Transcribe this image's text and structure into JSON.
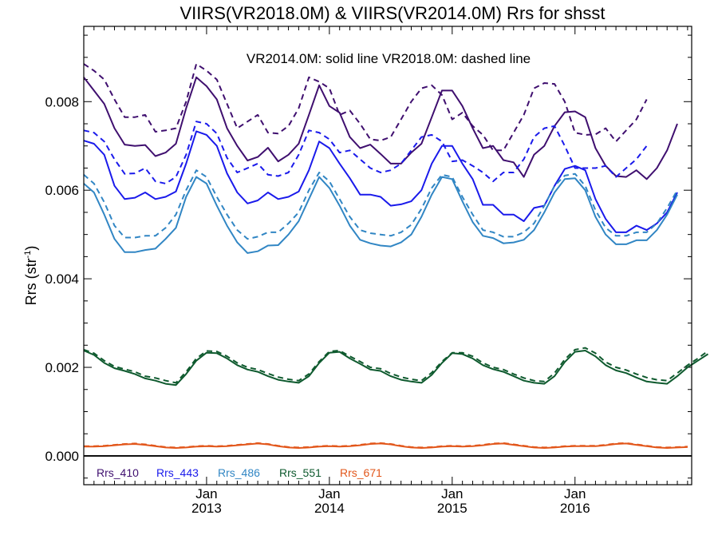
{
  "chart_data": {
    "type": "line",
    "title": "VIIRS(VR2018.0M) & VIIRS(VR2014.0M)  Rrs for shsst",
    "note": "VR2014.0M: solid line   VR2018.0M: dashed line",
    "ylabel": "Rrs (str",
    "ylabel_sup": "-1",
    "ylabel_close": ")",
    "xlim": [
      2012.0,
      2016.95
    ],
    "ylim": [
      -0.00065,
      0.0097
    ],
    "yticks": [
      0.0,
      0.002,
      0.004,
      0.006,
      0.008
    ],
    "ytick_labels": [
      "0.000",
      "0.002",
      "0.004",
      "0.006",
      "0.008"
    ],
    "xticks": [
      {
        "x": 2013.0,
        "month": "Jan",
        "year": "2013"
      },
      {
        "x": 2014.0,
        "month": "Jan",
        "year": "2014"
      },
      {
        "x": 2015.0,
        "month": "Jan",
        "year": "2015"
      },
      {
        "x": 2016.0,
        "month": "Jan",
        "year": "2016"
      }
    ],
    "x_first": 2012.0,
    "x_step": 0.0833333,
    "legend_position": "bottom-left",
    "series": [
      {
        "name": "Rrs_410",
        "color": "#3f0f6f",
        "style": "solid",
        "values": [
          0.00855,
          0.00825,
          0.00795,
          0.0074,
          0.00703,
          0.007,
          0.00702,
          0.00677,
          0.00685,
          0.00705,
          0.00785,
          0.00855,
          0.00835,
          0.00805,
          0.0074,
          0.007,
          0.00667,
          0.00675,
          0.00696,
          0.00665,
          0.0068,
          0.00705,
          0.0077,
          0.00837,
          0.0079,
          0.00775,
          0.0072,
          0.00695,
          0.00703,
          0.00682,
          0.0066,
          0.0066,
          0.00685,
          0.00705,
          0.00765,
          0.00825,
          0.00825,
          0.0079,
          0.0074,
          0.00695,
          0.007,
          0.00668,
          0.00663,
          0.0063,
          0.0068,
          0.007,
          0.00745,
          0.00776,
          0.00778,
          0.00765,
          0.00695,
          0.00655,
          0.00632,
          0.0063,
          0.00645,
          0.00625,
          0.0065,
          0.0069,
          0.0075
        ]
      },
      {
        "name": "Rrs_410",
        "color": "#3f0f6f",
        "style": "dashed",
        "values": [
          0.00885,
          0.0087,
          0.0085,
          0.00805,
          0.00765,
          0.00765,
          0.0077,
          0.00732,
          0.00735,
          0.0074,
          0.008,
          0.00885,
          0.0087,
          0.0085,
          0.00795,
          0.0074,
          0.00755,
          0.0077,
          0.0073,
          0.00728,
          0.00745,
          0.00785,
          0.00855,
          0.00845,
          0.0083,
          0.0077,
          0.0078,
          0.0075,
          0.00715,
          0.00712,
          0.0072,
          0.0076,
          0.008,
          0.0083,
          0.00837,
          0.00815,
          0.0076,
          0.00775,
          0.00745,
          0.00725,
          0.0069,
          0.0069,
          0.0073,
          0.0077,
          0.0083,
          0.00842,
          0.0084,
          0.008,
          0.0073,
          0.00725,
          0.00726,
          0.0074,
          0.0071,
          0.00735,
          0.0076,
          0.00805
        ]
      },
      {
        "name": "Rrs_443",
        "color": "#1a1aeb",
        "style": "solid",
        "values": [
          0.00712,
          0.00705,
          0.0068,
          0.0061,
          0.0058,
          0.00583,
          0.00595,
          0.0058,
          0.00585,
          0.00597,
          0.0066,
          0.00733,
          0.00725,
          0.007,
          0.00638,
          0.00595,
          0.0057,
          0.00577,
          0.00595,
          0.0058,
          0.00585,
          0.00597,
          0.00645,
          0.0071,
          0.00695,
          0.0066,
          0.00627,
          0.0059,
          0.0059,
          0.00585,
          0.00565,
          0.00568,
          0.00575,
          0.006,
          0.0066,
          0.007,
          0.007,
          0.0066,
          0.00625,
          0.00567,
          0.00567,
          0.00545,
          0.00545,
          0.0053,
          0.0056,
          0.00565,
          0.0061,
          0.00648,
          0.00655,
          0.00645,
          0.0058,
          0.00535,
          0.00505,
          0.00505,
          0.0052,
          0.0051,
          0.00525,
          0.0055,
          0.00595
        ]
      },
      {
        "name": "Rrs_443",
        "color": "#1a1aeb",
        "style": "dashed",
        "values": [
          0.00735,
          0.0073,
          0.0071,
          0.0067,
          0.00637,
          0.00638,
          0.0065,
          0.0062,
          0.00615,
          0.0063,
          0.0068,
          0.00755,
          0.0075,
          0.00728,
          0.00673,
          0.0064,
          0.0065,
          0.0066,
          0.00635,
          0.00632,
          0.0064,
          0.0068,
          0.00735,
          0.0073,
          0.00715,
          0.00685,
          0.0069,
          0.0067,
          0.0065,
          0.0064,
          0.00645,
          0.0066,
          0.0069,
          0.0072,
          0.00725,
          0.0071,
          0.00665,
          0.00668,
          0.00655,
          0.0064,
          0.0062,
          0.0064,
          0.0064,
          0.0067,
          0.0072,
          0.0074,
          0.00745,
          0.007,
          0.0065,
          0.0065,
          0.0065,
          0.00655,
          0.0063,
          0.0065,
          0.0067,
          0.007
        ]
      },
      {
        "name": "Rrs_486",
        "color": "#3186c4",
        "style": "solid",
        "values": [
          0.00615,
          0.00595,
          0.00545,
          0.0049,
          0.0046,
          0.0046,
          0.00465,
          0.00468,
          0.0049,
          0.00515,
          0.00585,
          0.0063,
          0.00615,
          0.00565,
          0.0052,
          0.00482,
          0.00458,
          0.00462,
          0.00475,
          0.00476,
          0.005,
          0.0053,
          0.0058,
          0.0063,
          0.00605,
          0.00565,
          0.0052,
          0.00488,
          0.0048,
          0.00475,
          0.00473,
          0.00482,
          0.005,
          0.0054,
          0.0059,
          0.0063,
          0.00625,
          0.00575,
          0.00528,
          0.00497,
          0.00492,
          0.0048,
          0.00482,
          0.00488,
          0.0051,
          0.0055,
          0.00595,
          0.00625,
          0.00627,
          0.006,
          0.0054,
          0.005,
          0.00478,
          0.00478,
          0.00487,
          0.00487,
          0.0051,
          0.00545,
          0.0059
        ]
      },
      {
        "name": "Rrs_486",
        "color": "#3186c4",
        "style": "dashed",
        "values": [
          0.00635,
          0.00615,
          0.00573,
          0.0052,
          0.00493,
          0.00493,
          0.00497,
          0.00497,
          0.00515,
          0.00545,
          0.006,
          0.00645,
          0.0063,
          0.00585,
          0.00545,
          0.0051,
          0.0049,
          0.00495,
          0.00505,
          0.00505,
          0.00525,
          0.0055,
          0.006,
          0.0064,
          0.0062,
          0.0058,
          0.0054,
          0.0051,
          0.00503,
          0.005,
          0.00497,
          0.00505,
          0.00522,
          0.00558,
          0.00605,
          0.00635,
          0.0063,
          0.00585,
          0.00545,
          0.0051,
          0.00505,
          0.00495,
          0.00495,
          0.00505,
          0.00525,
          0.00565,
          0.0061,
          0.00633,
          0.00637,
          0.0061,
          0.00555,
          0.00515,
          0.00497,
          0.00497,
          0.00505,
          0.00505,
          0.00525,
          0.0056,
          0.006
        ]
      },
      {
        "name": "Rrs_551",
        "color": "#0e5a2e",
        "style": "solid",
        "values": [
          0.00238,
          0.00228,
          0.0021,
          0.00198,
          0.00192,
          0.00185,
          0.00175,
          0.0017,
          0.00163,
          0.0016,
          0.00185,
          0.00215,
          0.00233,
          0.00232,
          0.0022,
          0.00205,
          0.00195,
          0.0019,
          0.0018,
          0.00172,
          0.00168,
          0.00165,
          0.0018,
          0.0021,
          0.00233,
          0.00235,
          0.0022,
          0.00208,
          0.00195,
          0.00192,
          0.0018,
          0.00172,
          0.00168,
          0.00165,
          0.00183,
          0.0021,
          0.00232,
          0.0023,
          0.0022,
          0.00205,
          0.00196,
          0.0019,
          0.0018,
          0.0017,
          0.00165,
          0.00163,
          0.0018,
          0.00212,
          0.00235,
          0.00238,
          0.00225,
          0.00205,
          0.00193,
          0.00187,
          0.00177,
          0.00168,
          0.00165,
          0.00163,
          0.0018,
          0.002,
          0.00215,
          0.0023
        ]
      },
      {
        "name": "Rrs_551",
        "color": "#0e5a2e",
        "style": "dashed",
        "values": [
          0.0024,
          0.00232,
          0.00215,
          0.00202,
          0.00196,
          0.0019,
          0.0018,
          0.00176,
          0.0017,
          0.00165,
          0.0019,
          0.0022,
          0.00237,
          0.00236,
          0.00225,
          0.0021,
          0.002,
          0.00195,
          0.00186,
          0.00178,
          0.00173,
          0.0017,
          0.00185,
          0.00213,
          0.00236,
          0.00238,
          0.00225,
          0.00213,
          0.002,
          0.00197,
          0.00186,
          0.00178,
          0.00173,
          0.0017,
          0.00188,
          0.00213,
          0.00233,
          0.00233,
          0.00225,
          0.0021,
          0.002,
          0.00195,
          0.00185,
          0.00176,
          0.0017,
          0.00168,
          0.00187,
          0.00218,
          0.0024,
          0.00244,
          0.00232,
          0.00212,
          0.002,
          0.00194,
          0.00185,
          0.00177,
          0.00172,
          0.0017,
          0.00187,
          0.00205,
          0.0022,
          0.00237
        ]
      },
      {
        "name": "Rrs_671",
        "color": "#e2561a",
        "style": "solid",
        "values": [
          0.00021,
          0.00021,
          0.00022,
          0.00024,
          0.00026,
          0.00027,
          0.00025,
          0.00022,
          0.00019,
          0.00018,
          0.00019,
          0.00021,
          0.00022,
          0.00021,
          0.00022,
          0.00024,
          0.00026,
          0.00028,
          0.00026,
          0.00022,
          0.00019,
          0.00018,
          0.00019,
          0.00021,
          0.00022,
          0.00021,
          0.00022,
          0.00024,
          0.00027,
          0.00028,
          0.00026,
          0.00022,
          0.00019,
          0.00018,
          0.00019,
          0.00021,
          0.00022,
          0.00021,
          0.00022,
          0.00024,
          0.00027,
          0.00028,
          0.00025,
          0.00022,
          0.00019,
          0.00018,
          0.00019,
          0.00021,
          0.00022,
          0.00022,
          0.00022,
          0.00024,
          0.00027,
          0.00028,
          0.00025,
          0.00022,
          0.00019,
          0.00018,
          0.00019,
          0.0002
        ]
      },
      {
        "name": "Rrs_671",
        "color": "#e2561a",
        "style": "dashed",
        "values": [
          0.00022,
          0.00022,
          0.00023,
          0.00025,
          0.00027,
          0.00028,
          0.00026,
          0.00023,
          0.0002,
          0.00019,
          0.0002,
          0.00022,
          0.00023,
          0.00022,
          0.00023,
          0.00025,
          0.00027,
          0.00029,
          0.00027,
          0.00023,
          0.0002,
          0.00019,
          0.0002,
          0.00022,
          0.00023,
          0.00022,
          0.00023,
          0.00025,
          0.00028,
          0.00029,
          0.00027,
          0.00023,
          0.0002,
          0.00019,
          0.0002,
          0.00022,
          0.00023,
          0.00022,
          0.00023,
          0.00025,
          0.00028,
          0.00029,
          0.00026,
          0.00023,
          0.0002,
          0.00019,
          0.0002,
          0.00022,
          0.00023,
          0.00023,
          0.00023,
          0.00025,
          0.00028,
          0.00029,
          0.00026,
          0.00023,
          0.0002,
          0.00019,
          0.0002,
          0.00021
        ]
      }
    ],
    "legend": [
      {
        "label": "Rrs_410",
        "color": "#3f0f6f"
      },
      {
        "label": "Rrs_443",
        "color": "#1a1aeb"
      },
      {
        "label": "Rrs_486",
        "color": "#3186c4"
      },
      {
        "label": "Rrs_551",
        "color": "#0e5a2e"
      },
      {
        "label": "Rrs_671",
        "color": "#e2561a"
      }
    ]
  }
}
